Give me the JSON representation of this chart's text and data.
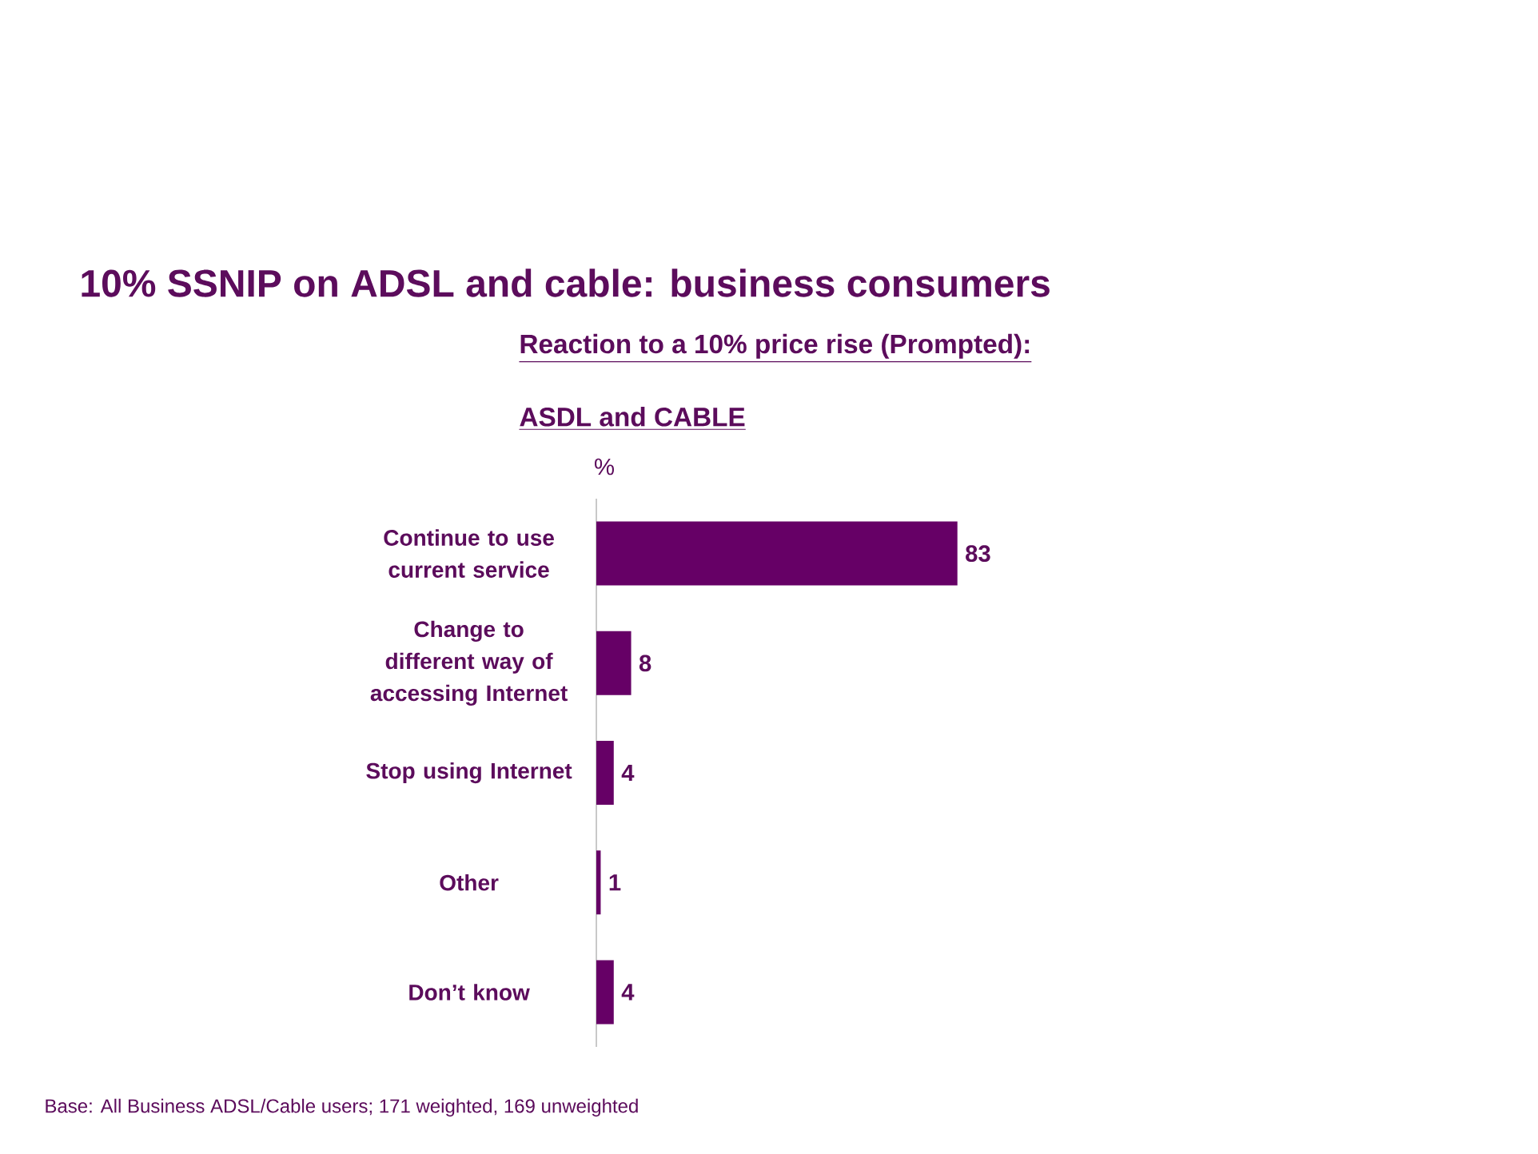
{
  "chart_data": {
    "type": "bar",
    "orientation": "horizontal",
    "title": "10% SSNIP on ADSL and cable: business consumers",
    "subtitle": "Reaction to a 10% price rise (Prompted):",
    "xlabel": "%",
    "categories": [
      "Continue to use current service",
      "Change to different way of accessing Internet",
      "Stop using Internet",
      "Other",
      "Don’t know"
    ],
    "values": [
      83,
      8,
      4,
      1,
      4
    ],
    "color": "#660066",
    "data_labels": true,
    "annotations": [
      "ASDL and CABLE",
      "Base: All Business ADSL/Cable users; 171 weighted, 169 unweighted"
    ]
  }
}
